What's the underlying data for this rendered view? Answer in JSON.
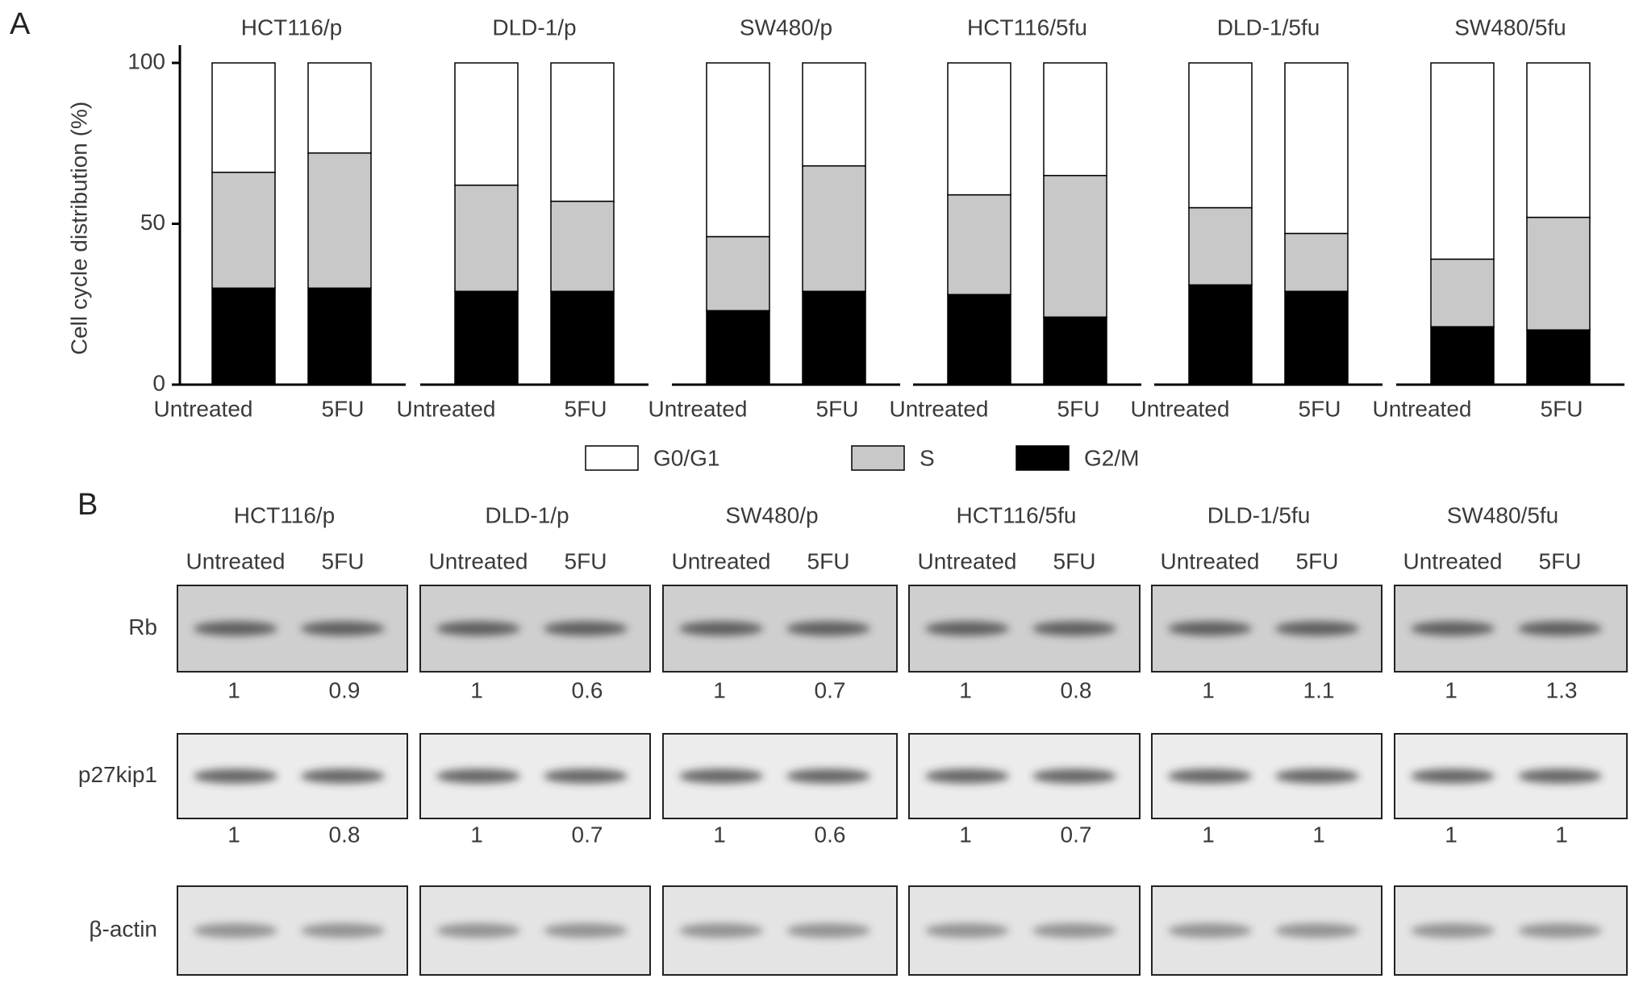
{
  "chart_data": {
    "type": "bar",
    "stacked": true,
    "panel_label": "A",
    "groups": [
      "HCT116/p",
      "DLD-1/p",
      "SW480/p",
      "HCT116/5fu",
      "DLD-1/5fu",
      "SW480/5fu"
    ],
    "categories": [
      "Untreated",
      "5FU"
    ],
    "ylabel": "Cell cycle distribution (%)",
    "ylim": [
      0,
      100
    ],
    "yticks": [
      0,
      50,
      100
    ],
    "series": [
      {
        "name": "G0/G1",
        "color": "#ffffff",
        "values": [
          [
            34,
            28
          ],
          [
            38,
            43
          ],
          [
            54,
            32
          ],
          [
            41,
            35
          ],
          [
            45,
            53
          ],
          [
            61,
            48
          ]
        ]
      },
      {
        "name": "S",
        "color": "#c8c8c8",
        "values": [
          [
            36,
            42
          ],
          [
            33,
            28
          ],
          [
            23,
            39
          ],
          [
            31,
            44
          ],
          [
            24,
            18
          ],
          [
            21,
            35
          ]
        ]
      },
      {
        "name": "G2/M",
        "color": "#000000",
        "values": [
          [
            30,
            30
          ],
          [
            29,
            29
          ],
          [
            23,
            29
          ],
          [
            28,
            21
          ],
          [
            31,
            29
          ],
          [
            18,
            17
          ]
        ]
      }
    ]
  },
  "blot": {
    "panel_label": "B",
    "groups": [
      "HCT116/p",
      "DLD-1/p",
      "SW480/p",
      "HCT116/5fu",
      "DLD-1/5fu",
      "SW480/5fu"
    ],
    "conditions": [
      "Untreated",
      "5FU"
    ],
    "rows": [
      {
        "name": "Rb",
        "values": [
          [
            1,
            0.9
          ],
          [
            1,
            0.6
          ],
          [
            1,
            0.7
          ],
          [
            1,
            0.8
          ],
          [
            1,
            1.1
          ],
          [
            1,
            1.3
          ]
        ]
      },
      {
        "name": "p27kip1",
        "values": [
          [
            1,
            0.8
          ],
          [
            1,
            0.7
          ],
          [
            1,
            0.6
          ],
          [
            1,
            0.7
          ],
          [
            1,
            1
          ],
          [
            1,
            1
          ]
        ]
      },
      {
        "name": "β-actin"
      }
    ]
  }
}
